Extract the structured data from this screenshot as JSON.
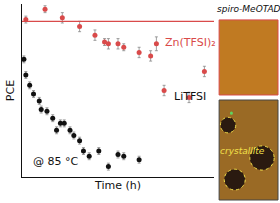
{
  "chart_data": {
    "type": "scatter",
    "xlabel": "Time (h)",
    "ylabel": "PCE",
    "xlim": [
      0,
      100
    ],
    "ylim": [
      0,
      100
    ],
    "tick_labels": false,
    "grid": false,
    "series": [
      {
        "name": "Zn(TFSI)₂",
        "color": "#d94a4a",
        "marker": "circle",
        "x": [
          2,
          12,
          21,
          30,
          38,
          43,
          45,
          50,
          53,
          61,
          67,
          70,
          74,
          87,
          95
        ],
        "values": [
          91,
          97,
          92,
          87,
          82,
          78,
          77,
          77,
          75,
          72,
          70,
          77,
          50,
          46,
          61
        ],
        "errors": [
          2,
          2,
          3,
          3,
          3,
          2,
          3,
          3,
          2,
          3,
          3,
          4,
          3,
          3,
          3
        ]
      },
      {
        "name": "LiTFSI",
        "color": "#111111",
        "marker": "circle",
        "x": [
          1,
          2,
          4,
          6,
          9,
          10,
          13,
          16,
          18,
          20,
          22,
          25,
          27,
          30,
          32,
          35,
          40,
          45,
          50,
          53,
          61
        ],
        "values": [
          68,
          59,
          53,
          48,
          44,
          39,
          38,
          34,
          27,
          31,
          31,
          27,
          24,
          21,
          15,
          12,
          15,
          6,
          13,
          12,
          10
        ],
        "errors": [
          2,
          2,
          2,
          2,
          2,
          2,
          2,
          2,
          2,
          2,
          2,
          2,
          2,
          2,
          2,
          2,
          2,
          2,
          2,
          2,
          2
        ]
      },
      {
        "type": "line",
        "color": "#d94a4a",
        "line_style": "solid",
        "x": [
          0,
          100
        ],
        "values": [
          90,
          90
        ]
      }
    ],
    "annotations": [
      {
        "text": "@ 85 °C"
      },
      {
        "text": "spiro-MeOTAD"
      },
      {
        "text": "crystallite"
      }
    ]
  }
}
